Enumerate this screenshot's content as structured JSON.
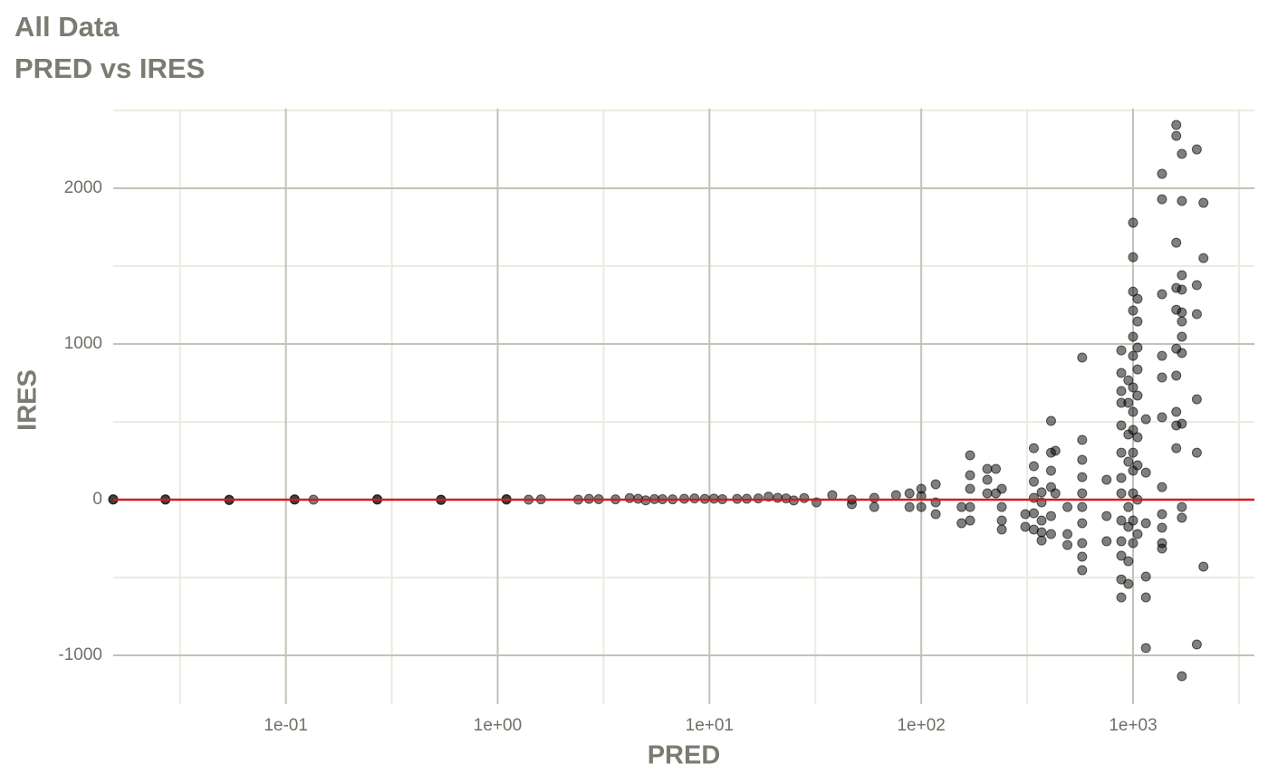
{
  "chart_data": {
    "type": "scatter",
    "title": "All Data",
    "subtitle": "PRED vs IRES",
    "x_label": "PRED",
    "y_label": "IRES",
    "x_log": true,
    "grid": true,
    "color": "#000000",
    "xlim": [
      0.0153,
      3741
    ],
    "ylim": [
      -1314,
      2512
    ],
    "xticks": [
      {
        "value": 0.1,
        "label": "1e-01"
      },
      {
        "value": 1,
        "label": "1e+00"
      },
      {
        "value": 10,
        "label": "1e+01"
      },
      {
        "value": 100,
        "label": "1e+02"
      },
      {
        "value": 1000,
        "label": "1e+03"
      }
    ],
    "yticks": [
      -1000,
      0,
      1000,
      2000
    ],
    "reference_line": {
      "value": 0,
      "color": "#d7191c"
    },
    "x": [
      0.0153,
      0.0153,
      0.027,
      0.027,
      0.054,
      0.054,
      0.11,
      0.11,
      0.135,
      0.27,
      0.27,
      0.54,
      0.54,
      1.1,
      1.1,
      1.4,
      1.6,
      2.4,
      2.7,
      3,
      3.6,
      4.2,
      4.6,
      5,
      5.5,
      6,
      6.7,
      7.6,
      8.5,
      9.5,
      10.5,
      11.5,
      13.5,
      15,
      17,
      19,
      21,
      23,
      25,
      28,
      32,
      38,
      47,
      47,
      60,
      60,
      76,
      88,
      88,
      100,
      100,
      100,
      117,
      117,
      117,
      155,
      155,
      170,
      170,
      170,
      170,
      170,
      205,
      205,
      205,
      225,
      225,
      240,
      240,
      240,
      240,
      310,
      310,
      340,
      340,
      340,
      340,
      340,
      340,
      370,
      370,
      370,
      370,
      370,
      410,
      410,
      410,
      410,
      410,
      410,
      430,
      430,
      490,
      490,
      490,
      575,
      575,
      575,
      575,
      575,
      575,
      575,
      575,
      575,
      575,
      750,
      750,
      750,
      880,
      880,
      880,
      880,
      880,
      880,
      880,
      880,
      880,
      880,
      880,
      880,
      880,
      950,
      950,
      950,
      950,
      950,
      950,
      950,
      950,
      1000,
      1000,
      1000,
      1000,
      1000,
      1000,
      1000,
      1000,
      1000,
      1000,
      1000,
      1000,
      1000,
      1000,
      1050,
      1050,
      1050,
      1050,
      1050,
      1050,
      1050,
      1050,
      1050,
      1150,
      1150,
      1150,
      1150,
      1150,
      1150,
      1370,
      1370,
      1370,
      1370,
      1370,
      1370,
      1370,
      1370,
      1370,
      1370,
      1370,
      1600,
      1600,
      1600,
      1600,
      1600,
      1600,
      1600,
      1600,
      1600,
      1600,
      1700,
      1700,
      1700,
      1700,
      1700,
      1700,
      1700,
      1700,
      1700,
      1700,
      1700,
      1700,
      2000,
      2000,
      2000,
      2000,
      2000,
      2000,
      2150,
      2150,
      2150
    ],
    "values": [
      0,
      3,
      0,
      2,
      0,
      -3,
      0,
      2,
      0,
      0,
      3,
      0,
      -2,
      0,
      4,
      0,
      2,
      0,
      5,
      3,
      2,
      10,
      6,
      -4,
      4,
      3,
      2,
      6,
      8,
      5,
      7,
      3,
      5,
      6,
      8,
      20,
      12,
      8,
      -5,
      10,
      -17,
      29,
      0,
      -29,
      12,
      -47,
      29,
      41,
      -47,
      70,
      23,
      -47,
      99,
      -17,
      -93,
      -47,
      -151,
      285,
      157,
      70,
      -47,
      -134,
      198,
      128,
      41,
      198,
      41,
      70,
      -47,
      -134,
      -192,
      -93,
      -174,
      331,
      215,
      116,
      12,
      -87,
      -192,
      47,
      -17,
      -134,
      -209,
      -262,
      506,
      302,
      186,
      81,
      -105,
      -221,
      314,
      41,
      -47,
      -221,
      -291,
      913,
      384,
      256,
      145,
      41,
      -47,
      -151,
      -279,
      -366,
      -453,
      128,
      -105,
      -267,
      959,
      814,
      698,
      622,
      477,
      302,
      140,
      41,
      -134,
      -267,
      -360,
      -512,
      -628,
      767,
      622,
      419,
      244,
      -47,
      -174,
      -395,
      -541,
      1779,
      1558,
      1337,
      1215,
      1047,
      924,
      721,
      564,
      448,
      302,
      186,
      41,
      -134,
      -279,
      1290,
      1145,
      977,
      837,
      669,
      401,
      221,
      0,
      -221,
      517,
      174,
      -151,
      -494,
      -628,
      -953,
      2093,
      1930,
      1320,
      924,
      785,
      529,
      81,
      -93,
      -180,
      -279,
      -314,
      2407,
      2337,
      1651,
      1360,
      1220,
      970,
      797,
      564,
      477,
      331,
      2221,
      1919,
      1442,
      1349,
      1203,
      1145,
      1047,
      942,
      488,
      -47,
      -116,
      -1134,
      2250,
      1378,
      1192,
      645,
      302,
      -930,
      1907,
      1552,
      -430
    ]
  }
}
